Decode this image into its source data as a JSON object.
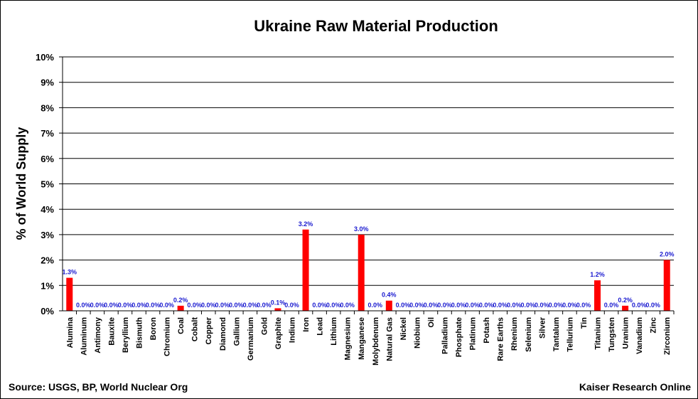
{
  "chart_data": {
    "type": "bar",
    "title": "Ukraine Raw Material Production",
    "ylabel": "% of World Supply",
    "xlabel": "",
    "ylim": [
      0,
      10
    ],
    "yticks": [
      "0%",
      "1%",
      "2%",
      "3%",
      "4%",
      "5%",
      "6%",
      "7%",
      "8%",
      "9%",
      "10%"
    ],
    "grid": true,
    "bar_color": "#ff0000",
    "label_color": "#1a1ad0",
    "categories": [
      "Alumina",
      "Aluminum",
      "Antimony",
      "Bauxite",
      "Beryllium",
      "Bismuth",
      "Boron",
      "Chromium",
      "Coal",
      "Cobalt",
      "Copper",
      "Diamond",
      "Gallium",
      "Germanium",
      "Gold",
      "Graphite",
      "Indium",
      "Iron",
      "Lead",
      "Lithium",
      "Magnesium",
      "Manganese",
      "Molybdenum",
      "Natural Gas",
      "Nickel",
      "Niobium",
      "Oil",
      "Palladium",
      "Phosphate",
      "Platinum",
      "Potash",
      "Rare Earths",
      "Rhenium",
      "Selenium",
      "Silver",
      "Tantalum",
      "Tellurium",
      "Tin",
      "Titanium",
      "Tungsten",
      "Uranium",
      "Vanadium",
      "Zinc",
      "Zirconium"
    ],
    "values": [
      1.3,
      0,
      0,
      0,
      0,
      0,
      0,
      0,
      0.2,
      0,
      0,
      0,
      0,
      0,
      0,
      0.1,
      0,
      3.2,
      0,
      0,
      0,
      3.0,
      0,
      0.4,
      0,
      0,
      0,
      0,
      0,
      0,
      0,
      0,
      0,
      0,
      0,
      0,
      0,
      0,
      1.2,
      0,
      0.2,
      0,
      0,
      2.0
    ],
    "data_labels": [
      "1.3%",
      "0.0%",
      "0.0%",
      "0.0%",
      "0.0%",
      "0.0%",
      "0.0%",
      "0.0%",
      "0.2%",
      "0.0%",
      "0.0%",
      "0.0%",
      "0.0%",
      "0.0%",
      "0.0%",
      "0.1%",
      "0.0%",
      "3.2%",
      "0.0%",
      "0.0%",
      "0.0%",
      "3.0%",
      "0.0%",
      "0.4%",
      "0.0%",
      "0.0%",
      "0.0%",
      "0.0%",
      "0.0%",
      "0.0%",
      "0.0%",
      "0.0%",
      "0.0%",
      "0.0%",
      "0.0%",
      "0.0%",
      "0.0%",
      "0.0%",
      "1.2%",
      "0.0%",
      "0.2%",
      "0.0%",
      "0.0%",
      "2.0%"
    ]
  },
  "footer": {
    "source": "Source: USGS, BP, World Nuclear Org",
    "credit": "Kaiser Research Online"
  }
}
